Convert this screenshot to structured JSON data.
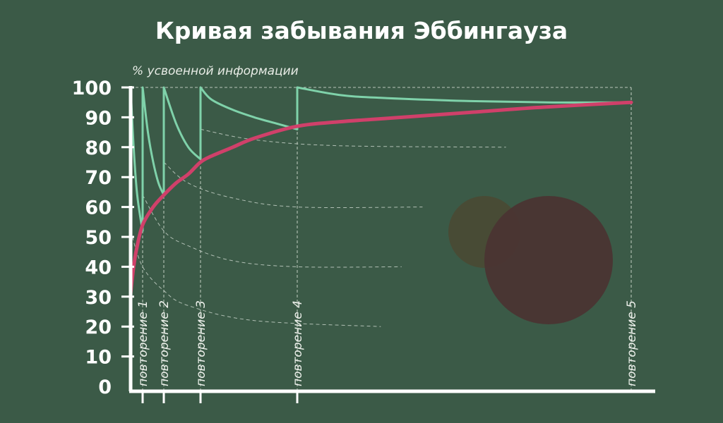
{
  "chart_data": {
    "type": "line",
    "title": "Кривая забывания Эббингауза",
    "ylabel": "% усвоенной информации",
    "xlabel": "",
    "ylim": [
      0,
      100
    ],
    "yticks": [
      "100",
      "90",
      "80",
      "70",
      "60",
      "50",
      "40",
      "30",
      "20",
      "10",
      "0"
    ],
    "repetitions": [
      {
        "label": "повторение 1",
        "x": 1,
        "retention_before": 52
      },
      {
        "label": "повторение 2",
        "x": 2,
        "retention_before": 64
      },
      {
        "label": "повторение 3",
        "x": 3.5,
        "retention_before": 76
      },
      {
        "label": "повторение 4",
        "x": 8,
        "retention_before": 87
      },
      {
        "label": "повторение 5",
        "x": 24,
        "retention_before": 95
      }
    ],
    "series": [
      {
        "color": "#d0406a",
        "points": [
          [
            0,
            31
          ],
          [
            0.25,
            40
          ],
          [
            0.5,
            46
          ],
          [
            1,
            54
          ],
          [
            1.5,
            60
          ],
          [
            2,
            64
          ],
          [
            2.5,
            68
          ],
          [
            3,
            71
          ],
          [
            3.5,
            75
          ],
          [
            4,
            77
          ],
          [
            5,
            80
          ],
          [
            6,
            83
          ],
          [
            8,
            87
          ],
          [
            10,
            88.5
          ],
          [
            12,
            89.5
          ],
          [
            16,
            91.5
          ],
          [
            20,
            93.5
          ],
          [
            24,
            95
          ]
        ]
      },
      {
        "color": "#7fd2aa",
        "segments": [
          [
            [
              0,
              100
            ],
            [
              0.25,
              80
            ],
            [
              0.5,
              66
            ],
            [
              0.75,
              58
            ],
            [
              1,
              52
            ]
          ],
          [
            [
              1,
              100
            ],
            [
              1.25,
              85
            ],
            [
              1.5,
              75
            ],
            [
              1.75,
              68
            ],
            [
              2,
              64
            ]
          ],
          [
            [
              2,
              100
            ],
            [
              2.5,
              88
            ],
            [
              3,
              80
            ],
            [
              3.5,
              76
            ]
          ],
          [
            [
              3.5,
              100
            ],
            [
              4,
              96
            ],
            [
              5,
              92.5
            ],
            [
              6,
              90
            ],
            [
              7,
              88
            ],
            [
              8,
              86
            ]
          ],
          [
            [
              8,
              100
            ],
            [
              10,
              97.5
            ],
            [
              12,
              96.5
            ],
            [
              16,
              95.5
            ],
            [
              20,
              95
            ],
            [
              24,
              95
            ]
          ]
        ]
      }
    ],
    "decay_guides": [
      [
        [
          0,
          52
        ],
        [
          1,
          40
        ],
        [
          2,
          32
        ],
        [
          3,
          27
        ],
        [
          6,
          22
        ],
        [
          12,
          20
        ]
      ],
      [
        [
          1,
          64
        ],
        [
          2,
          52
        ],
        [
          3,
          47
        ],
        [
          5,
          42
        ],
        [
          8,
          40
        ],
        [
          13,
          40
        ]
      ],
      [
        [
          2,
          75
        ],
        [
          3,
          68
        ],
        [
          5,
          63
        ],
        [
          8,
          60
        ],
        [
          14,
          60
        ]
      ],
      [
        [
          3.5,
          86
        ],
        [
          6,
          82.5
        ],
        [
          10,
          80.5
        ],
        [
          18,
          80
        ]
      ]
    ]
  },
  "palette": {
    "background": "#3b5a47",
    "axis": "#ffffff",
    "guide": "#d8e2d8",
    "circle_small": "#4a4a34",
    "circle_large": "#4a3432"
  }
}
